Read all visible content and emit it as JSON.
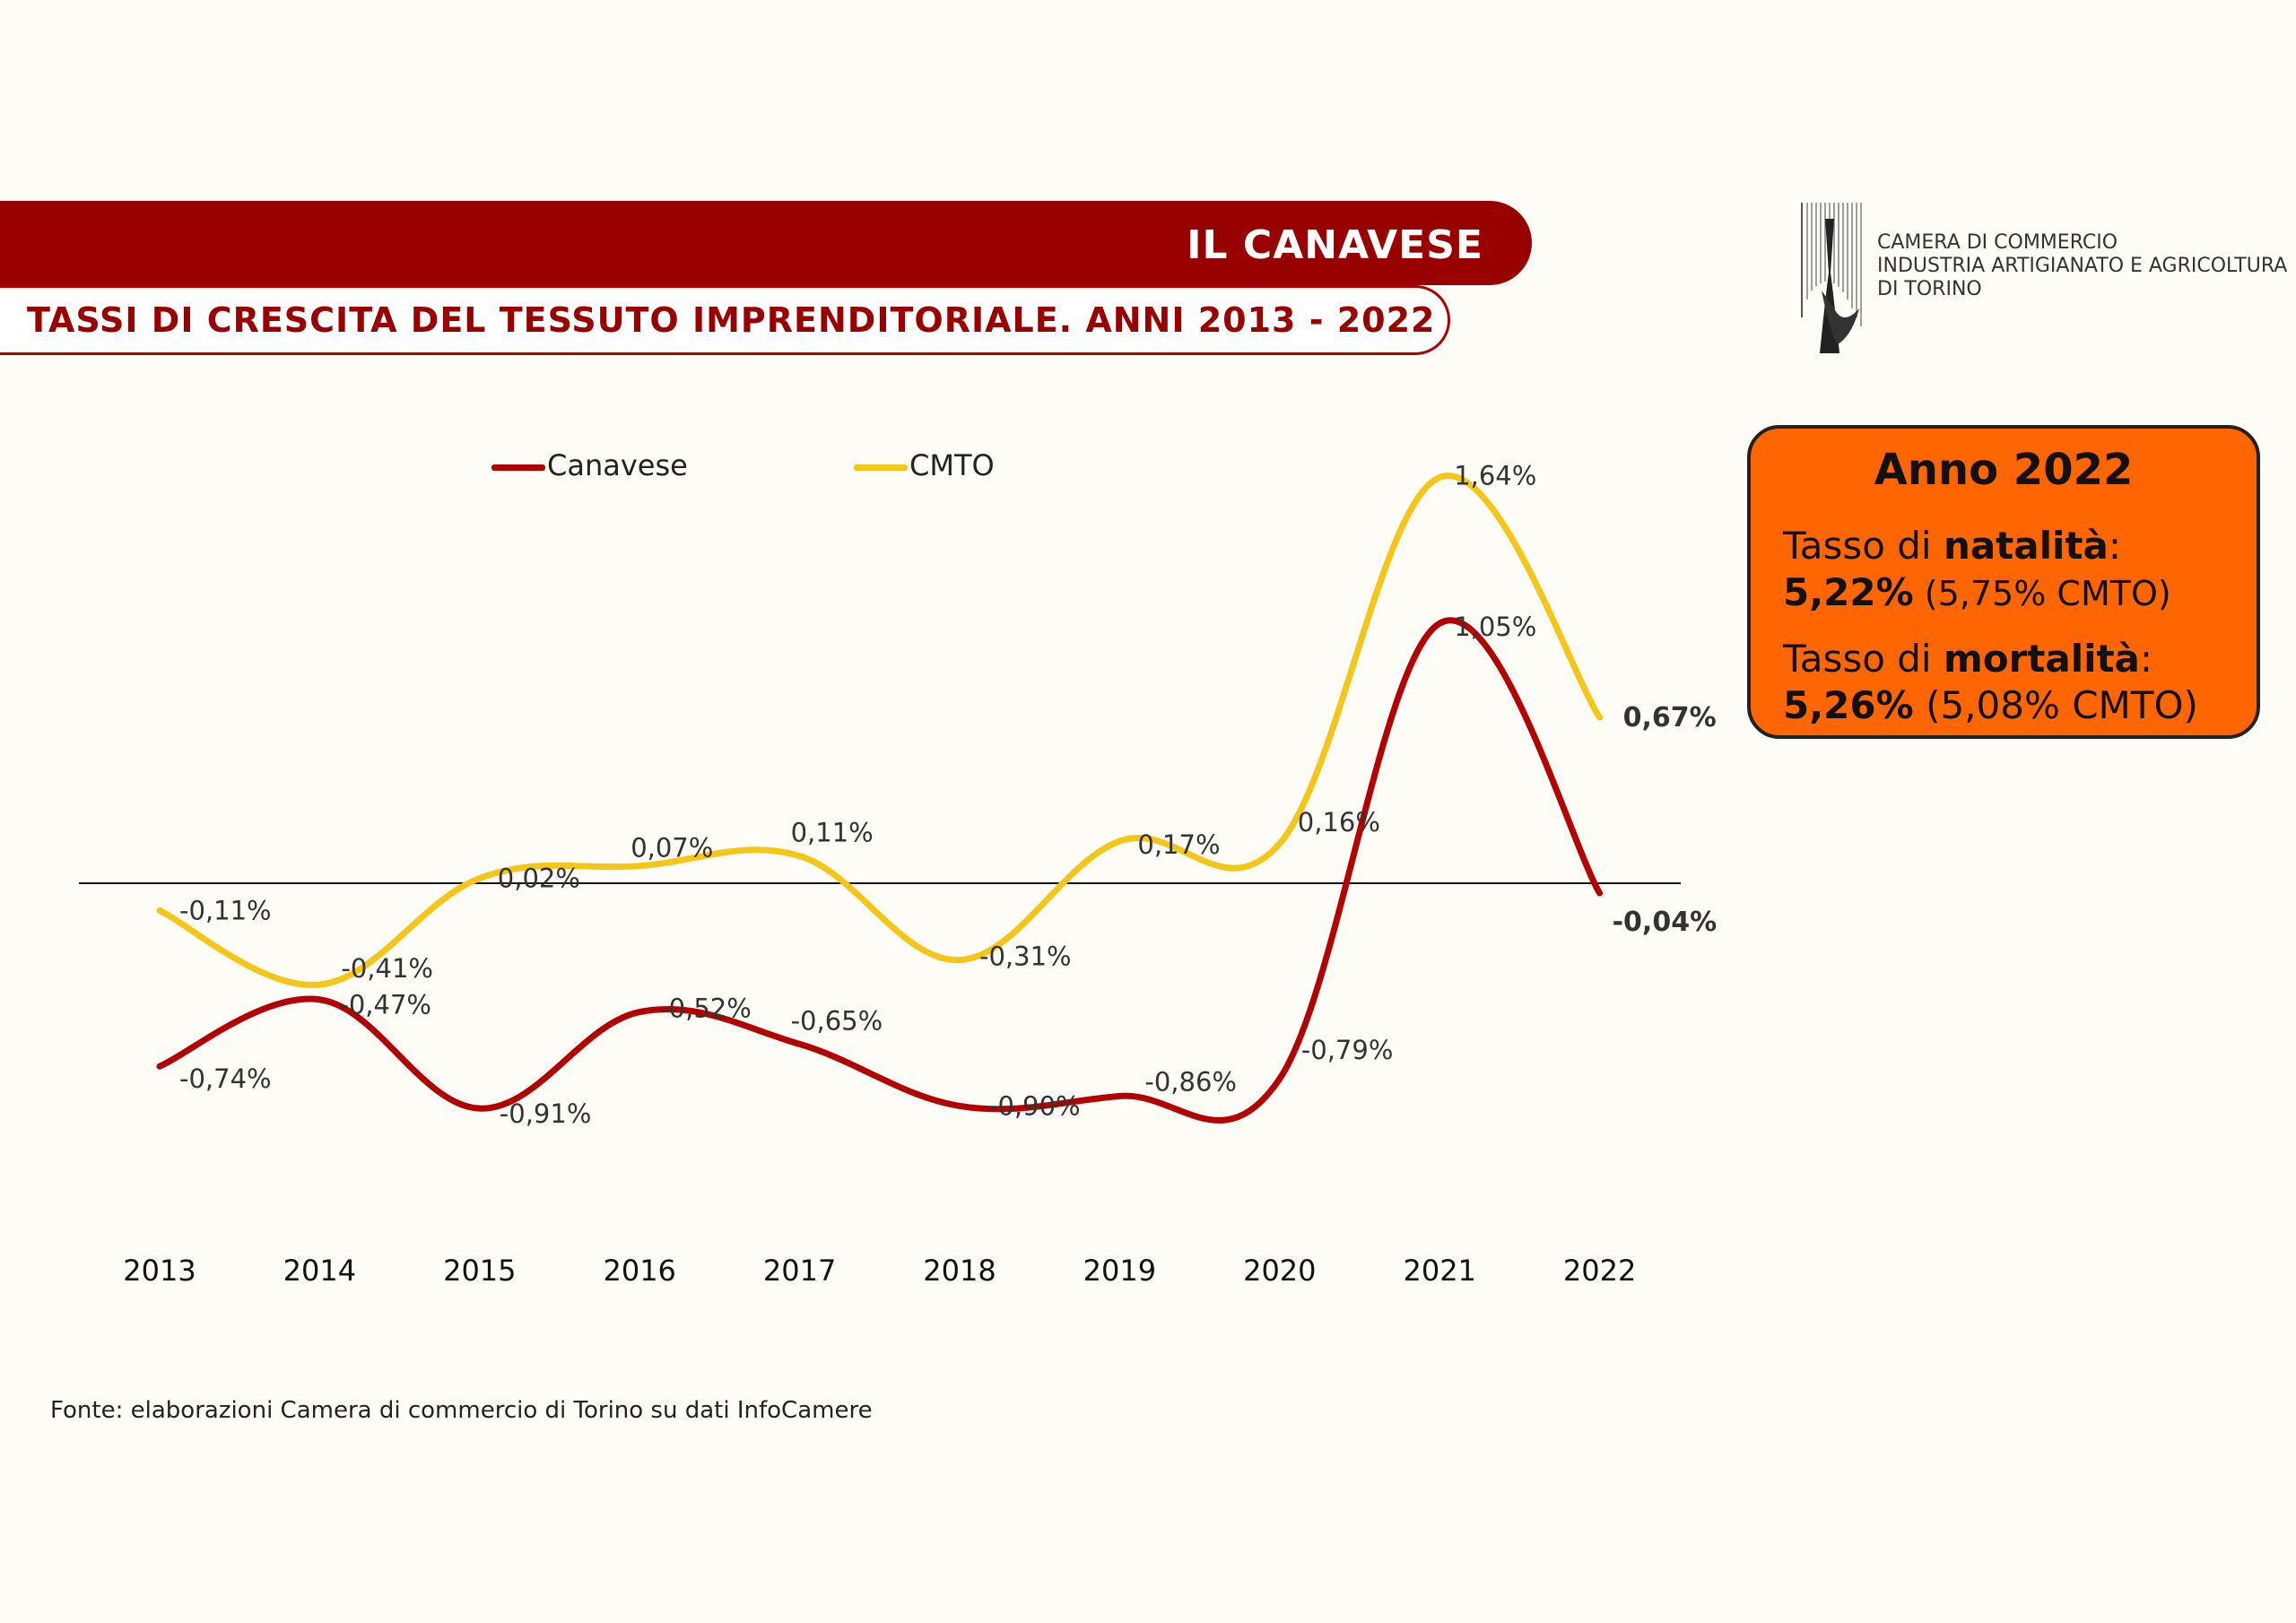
{
  "header": {
    "title": "IL CANAVESE",
    "subtitle": "TASSI DI CRESCITA DEL TESSUTO IMPRENDITORIALE. ANNI 2013 - 2022"
  },
  "logo": {
    "line1": "CAMERA DI COMMERCIO",
    "line2": "INDUSTRIA ARTIGIANATO E AGRICOLTURA",
    "line3": "DI TORINO"
  },
  "info_box": {
    "title": "Anno 2022",
    "natalita_prefix": "Tasso di ",
    "natalita_bold": "natalità",
    "natalita_suffix": ":",
    "natalita_value": "5,22%",
    "natalita_cmto": " (5,75% CMTO)",
    "mortalita_prefix": "Tasso di ",
    "mortalita_bold": "mortalità",
    "mortalita_suffix": ":",
    "mortalita_value": "5,26%",
    "mortalita_cmto": " (5,08% CMTO)"
  },
  "source": "Fonte: elaborazioni Camera di commercio di Torino su dati InfoCamere",
  "colors": {
    "brand_red": "#990000",
    "canavese": "#b30000",
    "cmto": "#f5c518",
    "info_box": "#ff6600"
  },
  "chart_data": {
    "type": "line",
    "categories": [
      "2013",
      "2014",
      "2015",
      "2016",
      "2017",
      "2018",
      "2019",
      "2020",
      "2021",
      "2022"
    ],
    "ylim": [
      -1.2,
      2.0
    ],
    "grid": false,
    "legend_position": "top",
    "series": [
      {
        "name": "Canavese",
        "color": "#b30000",
        "values": [
          -0.74,
          -0.47,
          -0.91,
          -0.52,
          -0.65,
          -0.9,
          -0.86,
          -0.79,
          1.05,
          -0.04
        ],
        "labels": [
          "-0,74%",
          "-0,47%",
          "-0,91%",
          "-0,52%",
          "-0,65%",
          "-0,90%",
          "-0,86%",
          "-0,79%",
          "1,05%",
          "-0,04%"
        ]
      },
      {
        "name": "CMTO",
        "color": "#f5c518",
        "values": [
          -0.11,
          -0.41,
          0.02,
          0.07,
          0.11,
          -0.31,
          0.17,
          0.16,
          1.64,
          0.67
        ],
        "labels": [
          "-0,11%",
          "-0,41%",
          "0,02%",
          "0,07%",
          "0,11%",
          "-0,31%",
          "0,17%",
          "0,16%",
          "1,64%",
          "0,67%"
        ]
      }
    ]
  }
}
